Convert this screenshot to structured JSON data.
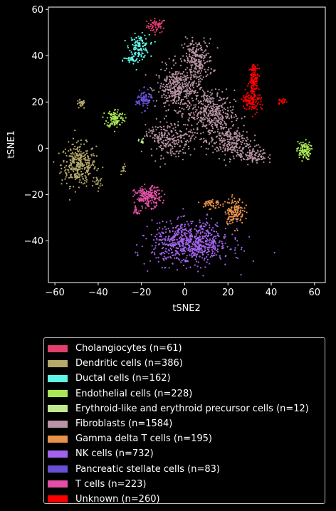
{
  "chart_data": {
    "type": "scatter",
    "title": "",
    "xlabel": "tSNE2",
    "ylabel": "tSNE1",
    "xlim": [
      -63,
      65
    ],
    "ylim": [
      -58,
      61
    ],
    "xticks": [
      -60,
      -40,
      -20,
      0,
      20,
      40,
      60
    ],
    "yticks": [
      -40,
      -20,
      0,
      20,
      40,
      60
    ],
    "xtick_labels": [
      "−60",
      "−40",
      "−20",
      "0",
      "20",
      "40",
      "60"
    ],
    "ytick_labels": [
      "−40",
      "−20",
      "0",
      "20",
      "40",
      "60"
    ],
    "grid": false,
    "legend_position": "below",
    "series": [
      {
        "name": "Cholangiocytes (n=61)",
        "color": "#e0406e",
        "clusters": [
          {
            "cx": -13,
            "cy": 53,
            "sx": 2.2,
            "sy": 1.5,
            "n": 61
          }
        ]
      },
      {
        "name": "Dendritic cells (n=386)",
        "color": "#b5a86a",
        "clusters": [
          {
            "cx": -49,
            "cy": -7,
            "sx": 4.0,
            "sy": 4.5,
            "n": 330
          },
          {
            "cx": -48,
            "cy": 19,
            "sx": 1.0,
            "sy": 1.0,
            "n": 26
          },
          {
            "cx": -40,
            "cy": -15,
            "sx": 1.0,
            "sy": 1.3,
            "n": 18
          },
          {
            "cx": -28,
            "cy": -9,
            "sx": 0.6,
            "sy": 0.9,
            "n": 12
          }
        ]
      },
      {
        "name": "Ductal cells (n=162)",
        "color": "#5ff5e6",
        "clusters": [
          {
            "cx": -21,
            "cy": 44,
            "sx": 2.3,
            "sy": 2.5,
            "n": 130
          },
          {
            "cx": -25,
            "cy": 38,
            "sx": 1.8,
            "sy": 0.8,
            "n": 32
          }
        ]
      },
      {
        "name": "Endothelial cells (n=228)",
        "color": "#a8e655",
        "clusters": [
          {
            "cx": -32,
            "cy": 13,
            "sx": 2.0,
            "sy": 2.0,
            "n": 120
          },
          {
            "cx": 55,
            "cy": -1,
            "sx": 1.6,
            "sy": 2.0,
            "n": 108
          }
        ]
      },
      {
        "name": "Erythroid-like and erythroid precursor cells (n=12)",
        "color": "#bfe990",
        "clusters": [
          {
            "cx": -20,
            "cy": 3,
            "sx": 0.6,
            "sy": 0.6,
            "n": 12
          }
        ]
      },
      {
        "name": "Fibroblasts (n=1584)",
        "color": "#b993a3",
        "clusters": [
          {
            "cx": 6,
            "cy": 38,
            "sx": 3.5,
            "sy": 4.5,
            "n": 230
          },
          {
            "cx": -3,
            "cy": 26,
            "sx": 5.0,
            "sy": 4.5,
            "n": 380
          },
          {
            "cx": 12,
            "cy": 15,
            "sx": 5.5,
            "sy": 5.0,
            "n": 380
          },
          {
            "cx": -6,
            "cy": 4,
            "sx": 5.0,
            "sy": 4.0,
            "n": 200
          },
          {
            "cx": 20,
            "cy": 3,
            "sx": 5.0,
            "sy": 3.5,
            "n": 240
          },
          {
            "cx": 31,
            "cy": -3,
            "sx": 3.5,
            "sy": 1.8,
            "n": 110
          },
          {
            "cx": -13,
            "cy": 6,
            "sx": 2.5,
            "sy": 1.5,
            "n": 44
          }
        ]
      },
      {
        "name": "Gamma delta T cells (n=195)",
        "color": "#e8924a",
        "clusters": [
          {
            "cx": 23,
            "cy": -27,
            "sx": 2.2,
            "sy": 2.8,
            "n": 150
          },
          {
            "cx": 12,
            "cy": -24,
            "sx": 2.3,
            "sy": 1.2,
            "n": 45
          }
        ]
      },
      {
        "name": "NK cells (n=732)",
        "color": "#a263ec",
        "clusters": [
          {
            "cx": 3,
            "cy": -41,
            "sx": 9.0,
            "sy": 4.5,
            "n": 732
          }
        ]
      },
      {
        "name": "Pancreatic stellate cells (n=83)",
        "color": "#6a4fd6",
        "clusters": [
          {
            "cx": -19,
            "cy": 21,
            "sx": 1.8,
            "sy": 2.0,
            "n": 83
          }
        ]
      },
      {
        "name": "T cells (n=223)",
        "color": "#e34fa6",
        "clusters": [
          {
            "cx": -17,
            "cy": -21,
            "sx": 3.0,
            "sy": 2.2,
            "n": 203
          },
          {
            "cx": -22,
            "cy": -27,
            "sx": 0.9,
            "sy": 0.9,
            "n": 20
          }
        ]
      },
      {
        "name": "Unknown (n=260)",
        "color": "#ff0000",
        "clusters": [
          {
            "cx": 32,
            "cy": 30,
            "sx": 1.0,
            "sy": 3.2,
            "n": 120
          },
          {
            "cx": 31,
            "cy": 21,
            "sx": 2.2,
            "sy": 2.5,
            "n": 120
          },
          {
            "cx": 45,
            "cy": 20,
            "sx": 1.0,
            "sy": 0.7,
            "n": 20
          }
        ]
      }
    ]
  }
}
